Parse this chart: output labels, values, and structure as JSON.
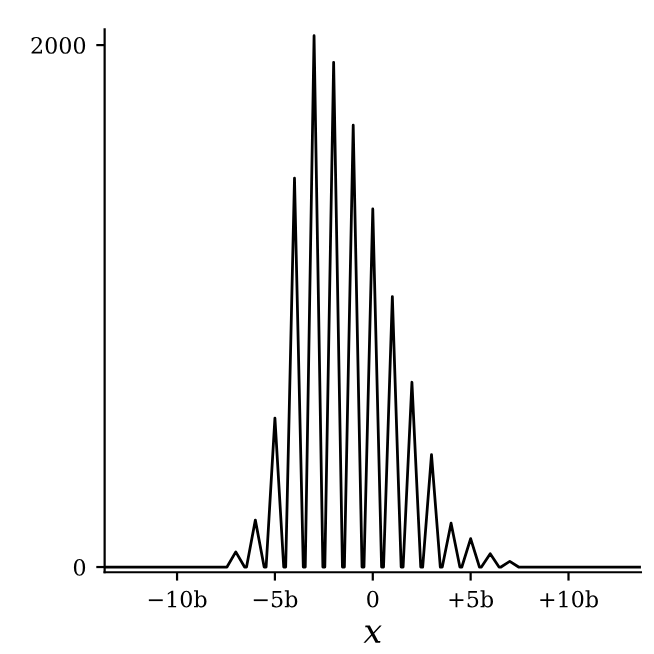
{
  "chart_data": {
    "type": "line",
    "xlabel": "x",
    "x": [
      -13.7,
      -7.45,
      -7,
      -6.55,
      -6.45,
      -6,
      -5.55,
      -5.45,
      -5,
      -4.55,
      -4.45,
      -4,
      -3.55,
      -3.45,
      -3,
      -2.55,
      -2.45,
      -2,
      -1.55,
      -1.45,
      -1,
      -0.55,
      -0.45,
      0,
      0.45,
      0.55,
      1,
      1.45,
      1.55,
      2,
      2.45,
      2.55,
      3,
      3.45,
      3.55,
      4,
      4.45,
      4.55,
      5,
      5.45,
      5.55,
      6,
      6.45,
      6.55,
      7,
      7.45,
      13.7
    ],
    "series": [
      {
        "color": "#000000",
        "values": [
          0,
          0,
          58,
          0,
          0,
          180,
          0,
          0,
          571,
          0,
          0,
          1490,
          0,
          0,
          2036,
          0,
          0,
          1934,
          0,
          0,
          1693,
          0,
          0,
          1372,
          0,
          0,
          1036,
          0,
          0,
          708,
          0,
          0,
          431,
          0,
          0,
          168,
          0,
          0,
          109,
          0,
          0,
          51,
          0,
          0,
          22,
          0,
          0
        ]
      }
    ],
    "xlim": [
      -13.7,
      13.7
    ],
    "ylim": [
      -20,
      2060
    ],
    "xticks": [
      {
        "value": -10,
        "label": "−10b"
      },
      {
        "value": -5,
        "label": "−5b"
      },
      0,
      {
        "value": 5,
        "label": "+5b"
      },
      {
        "value": 10,
        "label": "+10b"
      }
    ],
    "yticks": [
      0,
      2000
    ],
    "grid": false,
    "legend": false,
    "marker": "none",
    "line_style": "solid"
  }
}
